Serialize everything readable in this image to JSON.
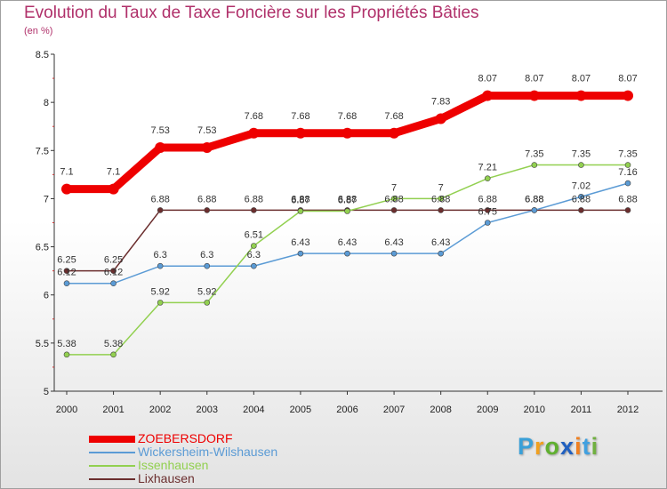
{
  "header": {
    "title": "Evolution du Taux de Taxe Foncière sur les Propriétés Bâties",
    "unit": "(en %)"
  },
  "brand": {
    "letters": [
      "P",
      "r",
      "o",
      "x",
      "i",
      "t",
      "i"
    ],
    "colors": [
      "#3aa0d8",
      "#f0a020",
      "#60b030",
      "#2060c0",
      "#f08020",
      "#40a0e0",
      "#70b040"
    ]
  },
  "chart_data": {
    "type": "line",
    "title": "Evolution du Taux de Taxe Foncière sur les Propriétés Bâties",
    "ylabel": "(en %)",
    "xlabel": "",
    "x": [
      "2000",
      "2001",
      "2002",
      "2003",
      "2004",
      "2005",
      "2006",
      "2007",
      "2008",
      "2009",
      "2010",
      "2011",
      "2012"
    ],
    "ylim": [
      5,
      8.5
    ],
    "yticks": [
      "5",
      "5.5",
      "6",
      "6.5",
      "7",
      "7.5",
      "8",
      "8.5"
    ],
    "grid": false,
    "legend_position": "bottom-left",
    "series": [
      {
        "name": "ZOEBERSDORF",
        "color": "#ee0000",
        "emphasis": true,
        "values": [
          7.1,
          7.1,
          7.53,
          7.53,
          7.68,
          7.68,
          7.68,
          7.68,
          7.83,
          8.07,
          8.07,
          8.07,
          8.07
        ],
        "labels": [
          "7.1",
          "7.1",
          "7.53",
          "7.53",
          "7.68",
          "7.68",
          "7.68",
          "7.68",
          "7.83",
          "8.07",
          "8.07",
          "8.07",
          "8.07"
        ]
      },
      {
        "name": "Wickersheim-Wilshausen",
        "color": "#5b9bd5",
        "emphasis": false,
        "values": [
          6.12,
          6.12,
          6.3,
          6.3,
          6.3,
          6.43,
          6.43,
          6.43,
          6.43,
          6.75,
          6.88,
          7.02,
          7.16
        ],
        "labels": [
          "6.12",
          "6.12",
          "6.3",
          "6.3",
          "6.3",
          "6.43",
          "6.43",
          "6.43",
          "6.43",
          "6.75",
          "6.88",
          "7.02",
          "7.16"
        ]
      },
      {
        "name": "Issenhausen",
        "color": "#92d050",
        "emphasis": false,
        "values": [
          5.38,
          5.38,
          5.92,
          5.92,
          6.51,
          6.87,
          6.87,
          7.0,
          7.0,
          7.21,
          7.35,
          7.35,
          7.35
        ],
        "labels": [
          "5.38",
          "5.38",
          "5.92",
          "5.92",
          "6.51",
          "6.87",
          "6.87",
          "7",
          "7",
          "7.21",
          "7.35",
          "7.35",
          "7.35"
        ]
      },
      {
        "name": "Lixhausen",
        "color": "#6b2e2e",
        "emphasis": false,
        "values": [
          6.25,
          6.25,
          6.88,
          6.88,
          6.88,
          6.88,
          6.88,
          6.88,
          6.88,
          6.88,
          6.88,
          6.88,
          6.88
        ],
        "labels": [
          "6.25",
          "6.25",
          "6.88",
          "6.88",
          "6.88",
          "6.88",
          "6.88",
          "6.88",
          "6.88",
          "6.88",
          "6.88",
          "6.88",
          "6.88"
        ]
      }
    ]
  }
}
